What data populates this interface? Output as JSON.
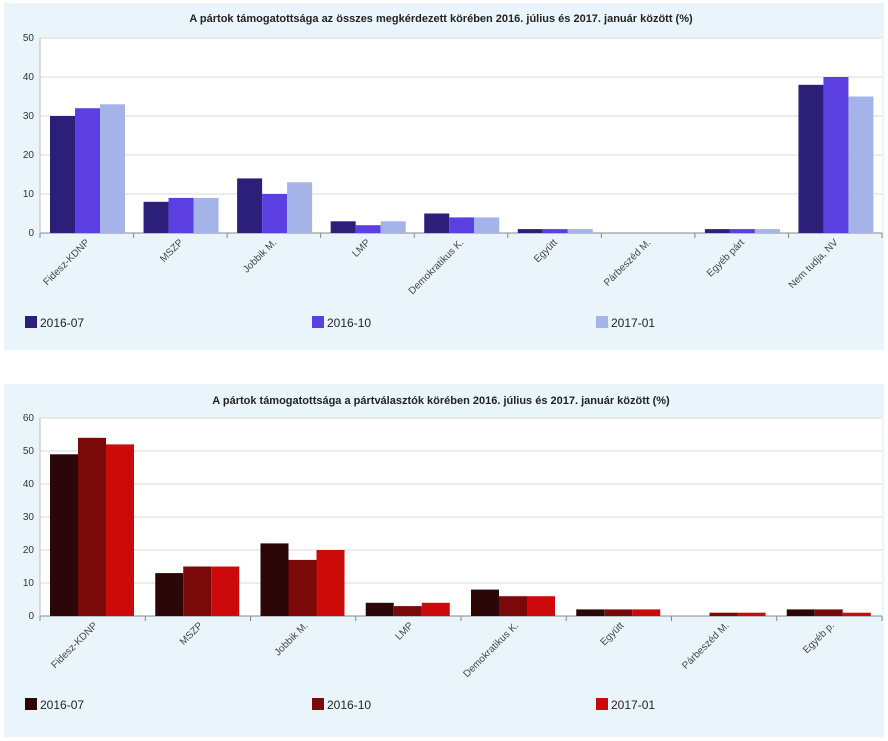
{
  "charts": [
    {
      "chart_data": {
        "type": "bar",
        "title": "A pártok támogatottsága az összes megkérdezett körében 2016. július és 2017. január között (%)",
        "categories": [
          "Fidesz-KDNP",
          "MSZP",
          "Jobbik M.",
          "LMP",
          "Demokratikus K.",
          "Együtt",
          "Párbeszéd M.",
          "Egyéb párt",
          "Nem tudja, NV"
        ],
        "series": [
          {
            "name": "2016-07",
            "color": "#2b1f7a",
            "values": [
              30,
              8,
              14,
              3,
              5,
              1,
              0,
              1,
              38
            ]
          },
          {
            "name": "2016-10",
            "color": "#5b3fe0",
            "values": [
              32,
              9,
              10,
              2,
              4,
              1,
              0,
              1,
              40
            ]
          },
          {
            "name": "2017-01",
            "color": "#a5b4e8",
            "values": [
              33,
              9,
              13,
              3,
              4,
              1,
              0,
              1,
              35
            ]
          }
        ],
        "ylim": [
          0,
          50
        ],
        "yticks": [
          0,
          10,
          20,
          30,
          40,
          50
        ],
        "grid": true,
        "legend_position": "bottom"
      }
    },
    {
      "chart_data": {
        "type": "bar",
        "title": "A pártok támogatottsága a pártválasztók körében 2016. július és 2017. január között (%)",
        "categories": [
          "Fidesz-KDNP",
          "MSZP",
          "Jobbik M.",
          "LMP",
          "Demokratikus K.",
          "Együtt",
          "Párbeszéd M.",
          "Egyéb p."
        ],
        "series": [
          {
            "name": "2016-07",
            "color": "#2b0707",
            "values": [
              49,
              13,
              22,
              4,
              8,
              2,
              0,
              2
            ]
          },
          {
            "name": "2016-10",
            "color": "#7a0a0a",
            "values": [
              54,
              15,
              17,
              3,
              6,
              2,
              1,
              2
            ]
          },
          {
            "name": "2017-01",
            "color": "#cc0a0a",
            "values": [
              52,
              15,
              20,
              4,
              6,
              2,
              1,
              1
            ]
          }
        ],
        "ylim": [
          0,
          60
        ],
        "yticks": [
          0,
          10,
          20,
          30,
          40,
          50,
          60
        ],
        "grid": true,
        "legend_position": "bottom"
      }
    }
  ]
}
